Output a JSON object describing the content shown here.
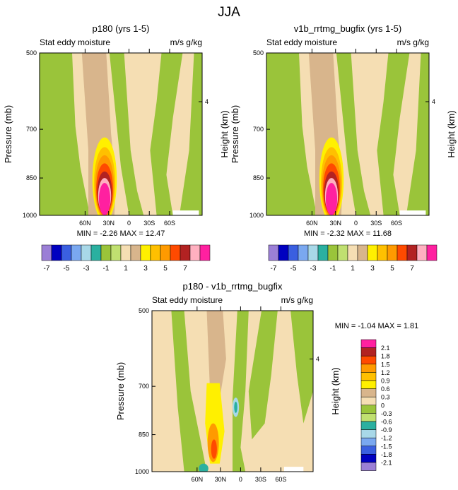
{
  "suptitle": "JJA",
  "colors": {
    "bg": "#f5deb3",
    "green": "#9ac43a",
    "lgreen": "#c0e070",
    "tan": "#d8b58c",
    "teal": "#2ab0a0",
    "lblue": "#a8d8e8",
    "yellow": "#fff000",
    "gold": "#ffc000",
    "orange": "#ff9a00",
    "red": "#ff4a00",
    "dred": "#b22222",
    "pink": "#ffb0c0",
    "magenta": "#ff20a0"
  },
  "chart_data": [
    {
      "type": "heatmap",
      "title": "p180 (yrs 1-5)",
      "left_label": "Stat eddy moisture",
      "right_label": "m/s g/kg",
      "ylabel": "Pressure (mb)",
      "ylabel_right": "Height (km)",
      "yticks": [
        "500",
        "700",
        "850",
        "1000"
      ],
      "height_tick": "4",
      "xticks": [
        "60N",
        "30N",
        "0",
        "30S",
        "60S"
      ],
      "stats": "MIN = -2.26   MAX = 12.47"
    },
    {
      "type": "heatmap",
      "title": "v1b_rrtmg_bugfix (yrs 1-5)",
      "left_label": "Stat eddy moisture",
      "right_label": "m/s g/kg",
      "ylabel": "Pressure (mb)",
      "ylabel_right": "Height (km)",
      "yticks": [
        "500",
        "700",
        "850",
        "1000"
      ],
      "height_tick": "4",
      "xticks": [
        "60N",
        "30N",
        "0",
        "30S",
        "60S"
      ],
      "stats": "MIN = -2.32   MAX = 11.68"
    },
    {
      "type": "heatmap",
      "title": "p180 - v1b_rrtmg_bugfix",
      "left_label": "Stat eddy moisture",
      "right_label": "m/s g/kg",
      "ylabel": "Pressure (mb)",
      "ylabel_right": "Height (km)",
      "yticks": [
        "500",
        "700",
        "850",
        "1000"
      ],
      "height_tick": "4",
      "xticks": [
        "60N",
        "30N",
        "0",
        "30S",
        "60S"
      ],
      "stats": "MIN = -1.04   MAX =  1.81"
    }
  ],
  "colorbar_h": {
    "colors": [
      "#9b7fd6",
      "#0000c0",
      "#3a5fe0",
      "#7aa8f0",
      "#a8d8e8",
      "#2ab0a0",
      "#9ac43a",
      "#c0e070",
      "#f5deb3",
      "#d8b58c",
      "#fff000",
      "#ffc000",
      "#ff9a00",
      "#ff4a00",
      "#b22222",
      "#ffb0c0",
      "#ff20a0"
    ],
    "labels": [
      "-7",
      "-5",
      "-3",
      "-1",
      "1",
      "3",
      "5",
      "7"
    ]
  },
  "colorbar_v": {
    "colors": [
      "#ff20a0",
      "#b22222",
      "#ff4a00",
      "#ff9a00",
      "#ffc000",
      "#fff000",
      "#d8b58c",
      "#f5deb3",
      "#9ac43a",
      "#c0e070",
      "#2ab0a0",
      "#a8d8e8",
      "#7aa8f0",
      "#3a5fe0",
      "#0000c0",
      "#9b7fd6"
    ],
    "labels": [
      "2.1",
      "1.8",
      "1.5",
      "1.2",
      "0.9",
      "0.6",
      "0.3",
      "0",
      "-0.3",
      "-0.6",
      "-0.9",
      "-1.2",
      "-1.5",
      "-1.8",
      "-2.1"
    ]
  }
}
